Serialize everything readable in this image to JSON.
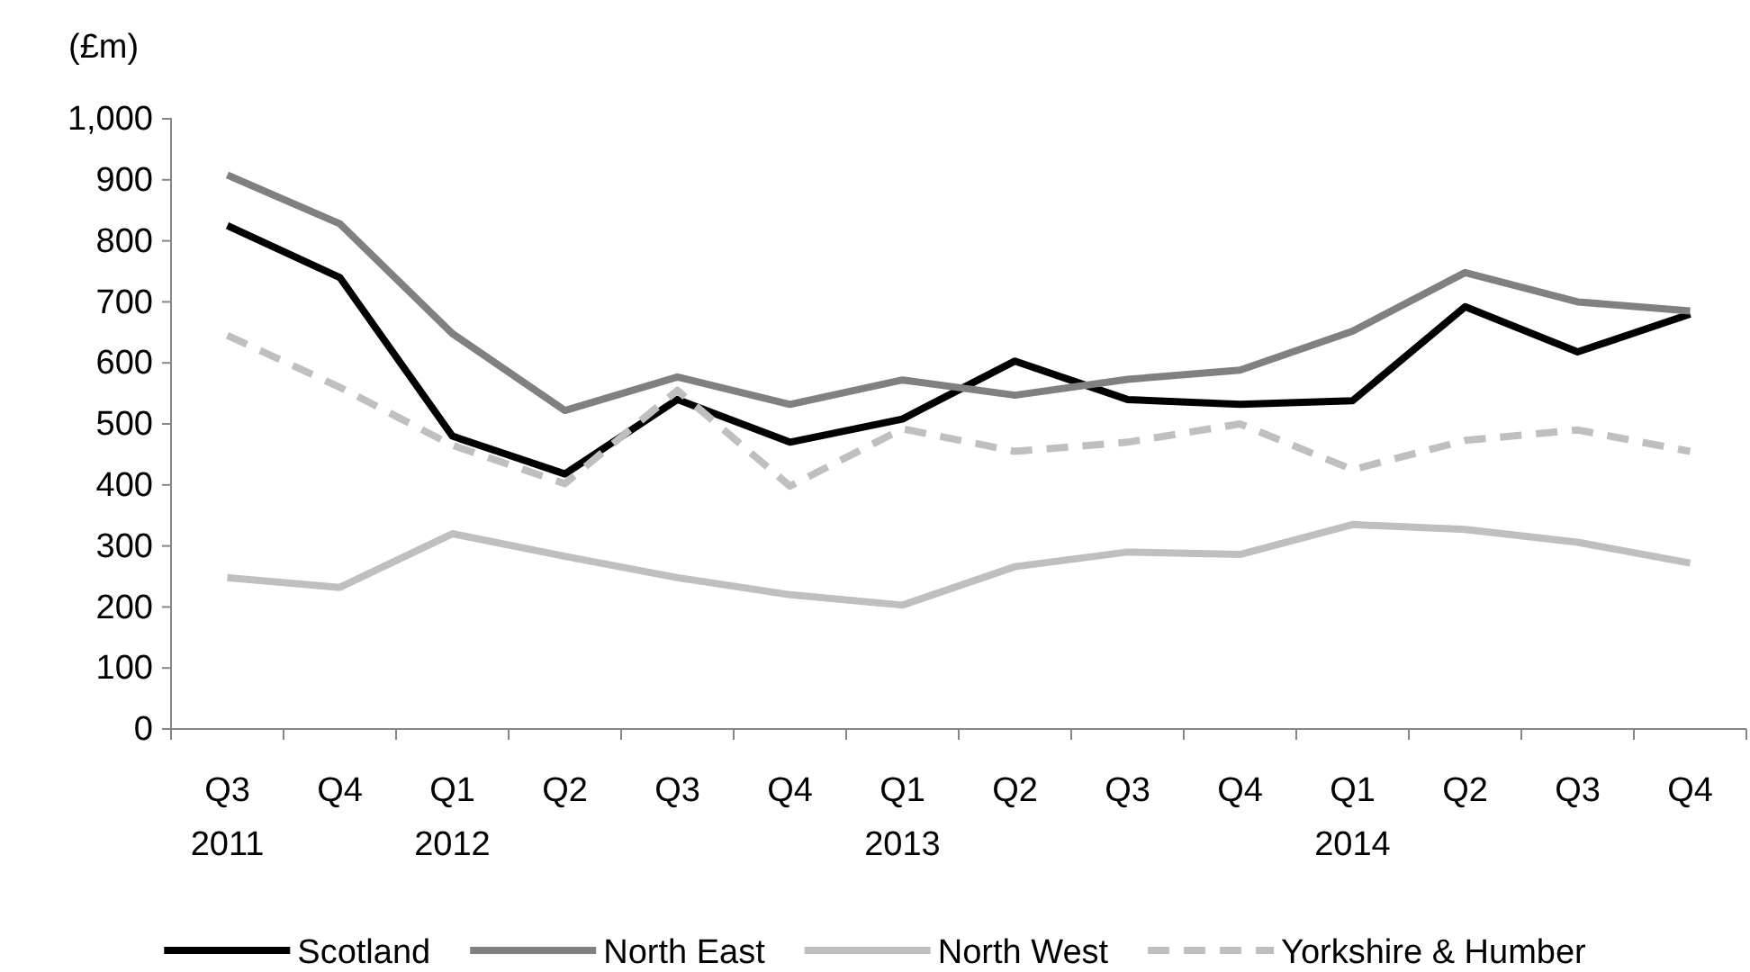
{
  "chart_data": {
    "type": "line",
    "ylabel": "(£m)",
    "categories": [
      "Q3\n2011",
      "Q4",
      "Q1\n2012",
      "Q2",
      "Q3",
      "Q4",
      "Q1\n2013",
      "Q2",
      "Q3",
      "Q4",
      "Q1\n2014",
      "Q2",
      "Q3",
      "Q4"
    ],
    "series": [
      {
        "name": "Scotland",
        "color": "#000000",
        "values": [
          825,
          740,
          480,
          418,
          540,
          470,
          508,
          603,
          540,
          532,
          538,
          692,
          618,
          680
        ]
      },
      {
        "name": "North East",
        "color": "#808080",
        "values": [
          908,
          828,
          648,
          522,
          577,
          532,
          572,
          547,
          573,
          588,
          652,
          748,
          700,
          685
        ]
      },
      {
        "name": "North West",
        "color": "#bfbfbf",
        "values": [
          248,
          232,
          320,
          283,
          248,
          220,
          203,
          266,
          290,
          286,
          335,
          327,
          306,
          272
        ]
      },
      {
        "name": "Yorkshire & Humber",
        "color": "#bfbfbf",
        "line_style": "dashed",
        "values": [
          645,
          560,
          465,
          402,
          555,
          398,
          492,
          455,
          470,
          500,
          425,
          473,
          490,
          455
        ]
      }
    ],
    "ylim": [
      0,
      1000
    ],
    "yticks": [
      0,
      100,
      200,
      300,
      400,
      500,
      600,
      700,
      800,
      900,
      {
        "value": 1000,
        "label": "1,000"
      }
    ],
    "grid": false,
    "legend": "bottom",
    "marker": "none",
    "line_style": "solid"
  }
}
